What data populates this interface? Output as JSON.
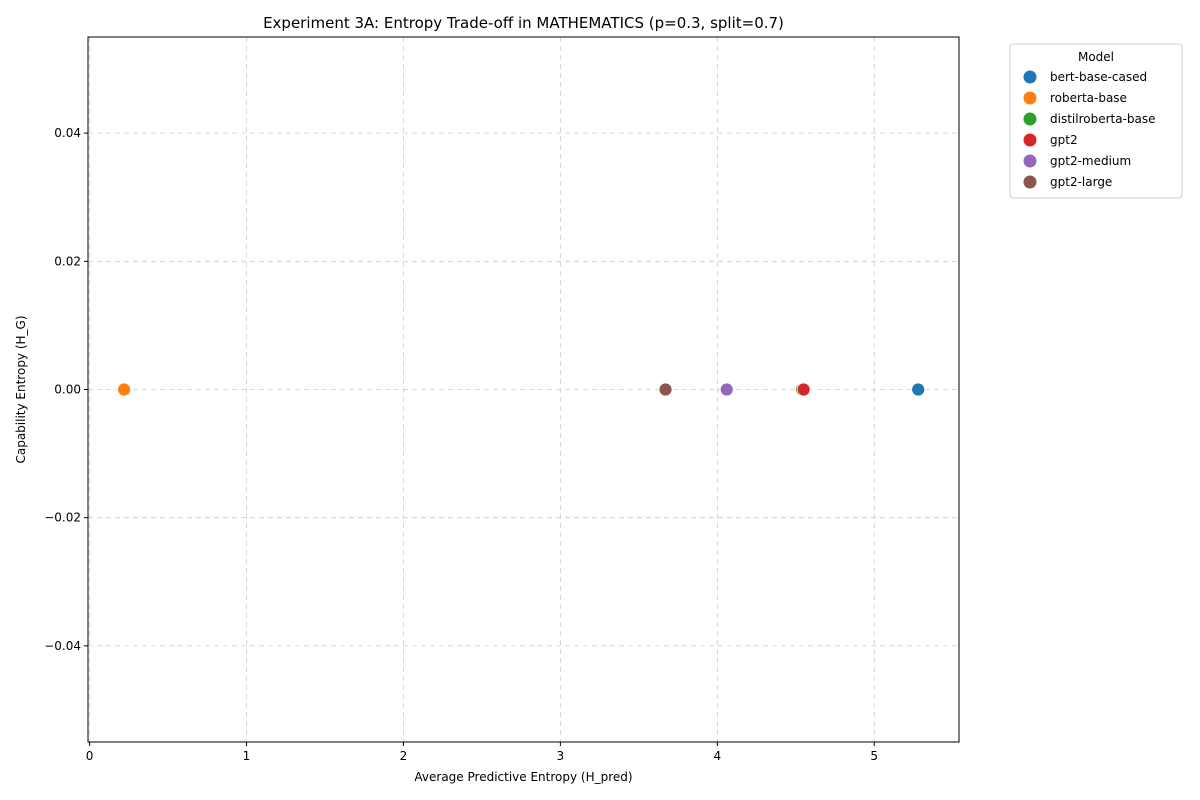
{
  "chart_data": {
    "type": "scatter",
    "title": "Experiment 3A: Entropy Trade-off in MATHEMATICS (p=0.3, split=0.7)",
    "xlabel": "Average Predictive Entropy (H_pred)",
    "ylabel": "Capability Entropy (H_G)",
    "xlim": [
      -0.01,
      5.54
    ],
    "ylim": [
      -0.055,
      0.055
    ],
    "x_ticks": [
      0,
      1,
      2,
      3,
      4,
      5
    ],
    "x_tick_labels": [
      "0",
      "1",
      "2",
      "3",
      "4",
      "5"
    ],
    "y_ticks": [
      0.04,
      0.02,
      0.0,
      -0.02,
      -0.04
    ],
    "y_tick_labels": [
      "0.04",
      "0.02",
      "0.00",
      "−0.02",
      "−0.04"
    ],
    "grid": true,
    "legend_title": "Model",
    "legend_position": "outside-top-right",
    "series": [
      {
        "name": "bert-base-cased",
        "color": "#1f77b4",
        "x": [
          5.28
        ],
        "y": [
          0.0
        ]
      },
      {
        "name": "roberta-base",
        "color": "#ff7f0e",
        "x": [
          0.22
        ],
        "y": [
          0.0
        ]
      },
      {
        "name": "distilroberta-base",
        "color": "#2ca02c",
        "x": [
          4.54
        ],
        "y": [
          0.0
        ]
      },
      {
        "name": "gpt2",
        "color": "#d62728",
        "x": [
          4.55
        ],
        "y": [
          0.0
        ]
      },
      {
        "name": "gpt2-medium",
        "color": "#9467bd",
        "x": [
          4.06
        ],
        "y": [
          0.0
        ]
      },
      {
        "name": "gpt2-large",
        "color": "#8c564b",
        "x": [
          3.67
        ],
        "y": [
          0.0
        ]
      }
    ]
  }
}
